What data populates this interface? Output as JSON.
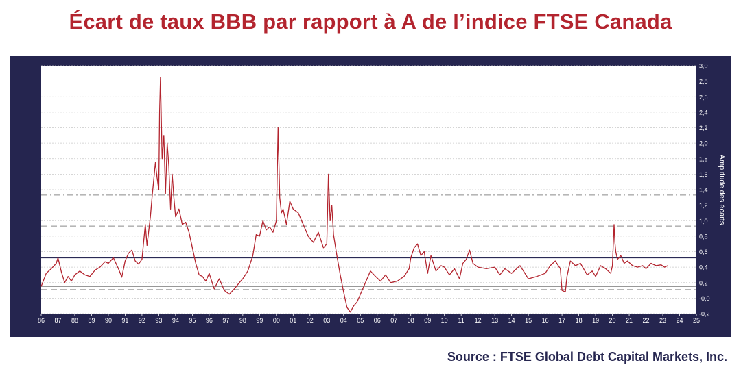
{
  "title": "Écart de taux BBB par rapport à A de l’indice FTSE Canada",
  "source": "Source : FTSE Global Debt Capital Markets, Inc.",
  "colors": {
    "series": "#b3242e",
    "frame": "#25254f",
    "title": "#b3242e",
    "reference_dark": "#2a2a55",
    "reference_gray": "#8a8a8a"
  },
  "chart_data": {
    "type": "line",
    "title": "",
    "xlabel": "",
    "ylabel": "Amplitude des écarts",
    "xlim": [
      1986,
      2025
    ],
    "ylim": [
      -0.2,
      3.0
    ],
    "x_ticks": [
      "86",
      "87",
      "88",
      "89",
      "90",
      "91",
      "92",
      "93",
      "94",
      "95",
      "96",
      "97",
      "98",
      "99",
      "00",
      "01",
      "02",
      "03",
      "04",
      "05",
      "06",
      "07",
      "08",
      "09",
      "10",
      "11",
      "12",
      "13",
      "14",
      "15",
      "16",
      "17",
      "18",
      "19",
      "20",
      "21",
      "22",
      "23",
      "24",
      "25"
    ],
    "y_ticks": [
      "-0,2",
      "-0,0",
      "0,2",
      "0,4",
      "0,6",
      "0,8",
      "1,0",
      "1,2",
      "1,4",
      "1,6",
      "1,8",
      "2,0",
      "2,2",
      "2,4",
      "2,6",
      "2,8",
      "3,0"
    ],
    "grid": "horizontal",
    "reference_lines": [
      {
        "value": 1.33,
        "style": "dash-dot",
        "color": "gray"
      },
      {
        "value": 0.93,
        "style": "dashed",
        "color": "gray"
      },
      {
        "value": 0.52,
        "style": "solid",
        "color": "dark"
      },
      {
        "value": 0.15,
        "style": "solid",
        "color": "gray"
      },
      {
        "value": 0.11,
        "style": "dashed",
        "color": "gray"
      }
    ],
    "series": [
      {
        "x": [
          1986.0,
          1986.3,
          1986.6,
          1986.9,
          1987.0,
          1987.2,
          1987.4,
          1987.6,
          1987.8,
          1988.0,
          1988.3,
          1988.6,
          1988.9,
          1989.2,
          1989.5,
          1989.8,
          1990.0,
          1990.3,
          1990.6,
          1990.8,
          1991.0,
          1991.2,
          1991.4,
          1991.6,
          1991.8,
          1992.0,
          1992.2,
          1992.3,
          1992.5,
          1992.6,
          1992.8,
          1992.9,
          1993.0,
          1993.05,
          1993.1,
          1993.2,
          1993.3,
          1993.4,
          1993.5,
          1993.6,
          1993.7,
          1993.8,
          1993.9,
          1994.0,
          1994.2,
          1994.4,
          1994.6,
          1994.8,
          1995.0,
          1995.2,
          1995.4,
          1995.6,
          1995.8,
          1996.0,
          1996.3,
          1996.6,
          1996.9,
          1997.2,
          1997.5,
          1997.8,
          1998.0,
          1998.3,
          1998.6,
          1998.8,
          1999.0,
          1999.2,
          1999.4,
          1999.6,
          1999.8,
          2000.0,
          2000.1,
          2000.2,
          2000.3,
          2000.4,
          2000.6,
          2000.8,
          2001.0,
          2001.3,
          2001.6,
          2001.9,
          2002.2,
          2002.5,
          2002.8,
          2003.0,
          2003.1,
          2003.2,
          2003.3,
          2003.4,
          2003.6,
          2003.8,
          2004.0,
          2004.2,
          2004.4,
          2004.6,
          2004.8,
          2005.0,
          2005.3,
          2005.6,
          2005.9,
          2006.2,
          2006.5,
          2006.8,
          2007.2,
          2007.6,
          2007.9,
          2008.0,
          2008.2,
          2008.4,
          2008.6,
          2008.8,
          2009.0,
          2009.2,
          2009.5,
          2009.8,
          2010.0,
          2010.3,
          2010.6,
          2010.9,
          2011.1,
          2011.3,
          2011.5,
          2011.7,
          2012.0,
          2012.5,
          2013.0,
          2013.3,
          2013.6,
          2014.0,
          2014.5,
          2015.0,
          2015.5,
          2016.0,
          2016.3,
          2016.6,
          2016.9,
          2017.0,
          2017.2,
          2017.3,
          2017.5,
          2017.8,
          2018.1,
          2018.5,
          2018.8,
          2019.0,
          2019.3,
          2019.6,
          2019.9,
          2020.0,
          2020.1,
          2020.15,
          2020.2,
          2020.3,
          2020.5,
          2020.7,
          2020.9,
          2021.2,
          2021.5,
          2021.8,
          2022.0,
          2022.3,
          2022.6,
          2022.9,
          2023.1,
          2023.3
        ],
        "y": [
          0.15,
          0.32,
          0.38,
          0.45,
          0.52,
          0.34,
          0.2,
          0.28,
          0.22,
          0.3,
          0.35,
          0.3,
          0.28,
          0.36,
          0.4,
          0.47,
          0.45,
          0.52,
          0.38,
          0.27,
          0.48,
          0.58,
          0.62,
          0.48,
          0.44,
          0.5,
          0.95,
          0.68,
          1.05,
          1.3,
          1.75,
          1.55,
          1.4,
          2.4,
          2.85,
          1.8,
          2.1,
          1.35,
          2.0,
          1.7,
          1.15,
          1.6,
          1.3,
          1.05,
          1.15,
          0.95,
          0.98,
          0.85,
          0.65,
          0.45,
          0.3,
          0.28,
          0.22,
          0.32,
          0.12,
          0.25,
          0.1,
          0.05,
          0.12,
          0.2,
          0.25,
          0.35,
          0.55,
          0.82,
          0.8,
          1.0,
          0.88,
          0.92,
          0.85,
          1.0,
          2.2,
          1.3,
          1.1,
          1.15,
          0.95,
          1.25,
          1.15,
          1.1,
          0.95,
          0.8,
          0.72,
          0.85,
          0.65,
          0.7,
          1.6,
          1.0,
          1.2,
          0.82,
          0.55,
          0.3,
          0.08,
          -0.12,
          -0.18,
          -0.1,
          -0.05,
          0.05,
          0.2,
          0.35,
          0.28,
          0.22,
          0.3,
          0.2,
          0.22,
          0.28,
          0.38,
          0.52,
          0.65,
          0.7,
          0.55,
          0.6,
          0.32,
          0.55,
          0.35,
          0.42,
          0.4,
          0.3,
          0.38,
          0.25,
          0.45,
          0.5,
          0.62,
          0.45,
          0.4,
          0.38,
          0.4,
          0.3,
          0.38,
          0.32,
          0.42,
          0.25,
          0.28,
          0.32,
          0.42,
          0.48,
          0.38,
          0.1,
          0.08,
          0.28,
          0.48,
          0.42,
          0.45,
          0.3,
          0.35,
          0.28,
          0.42,
          0.38,
          0.32,
          0.42,
          0.95,
          0.72,
          0.6,
          0.5,
          0.55,
          0.45,
          0.48,
          0.42,
          0.4,
          0.42,
          0.38,
          0.45,
          0.42,
          0.43,
          0.4,
          0.42
        ]
      }
    ]
  }
}
